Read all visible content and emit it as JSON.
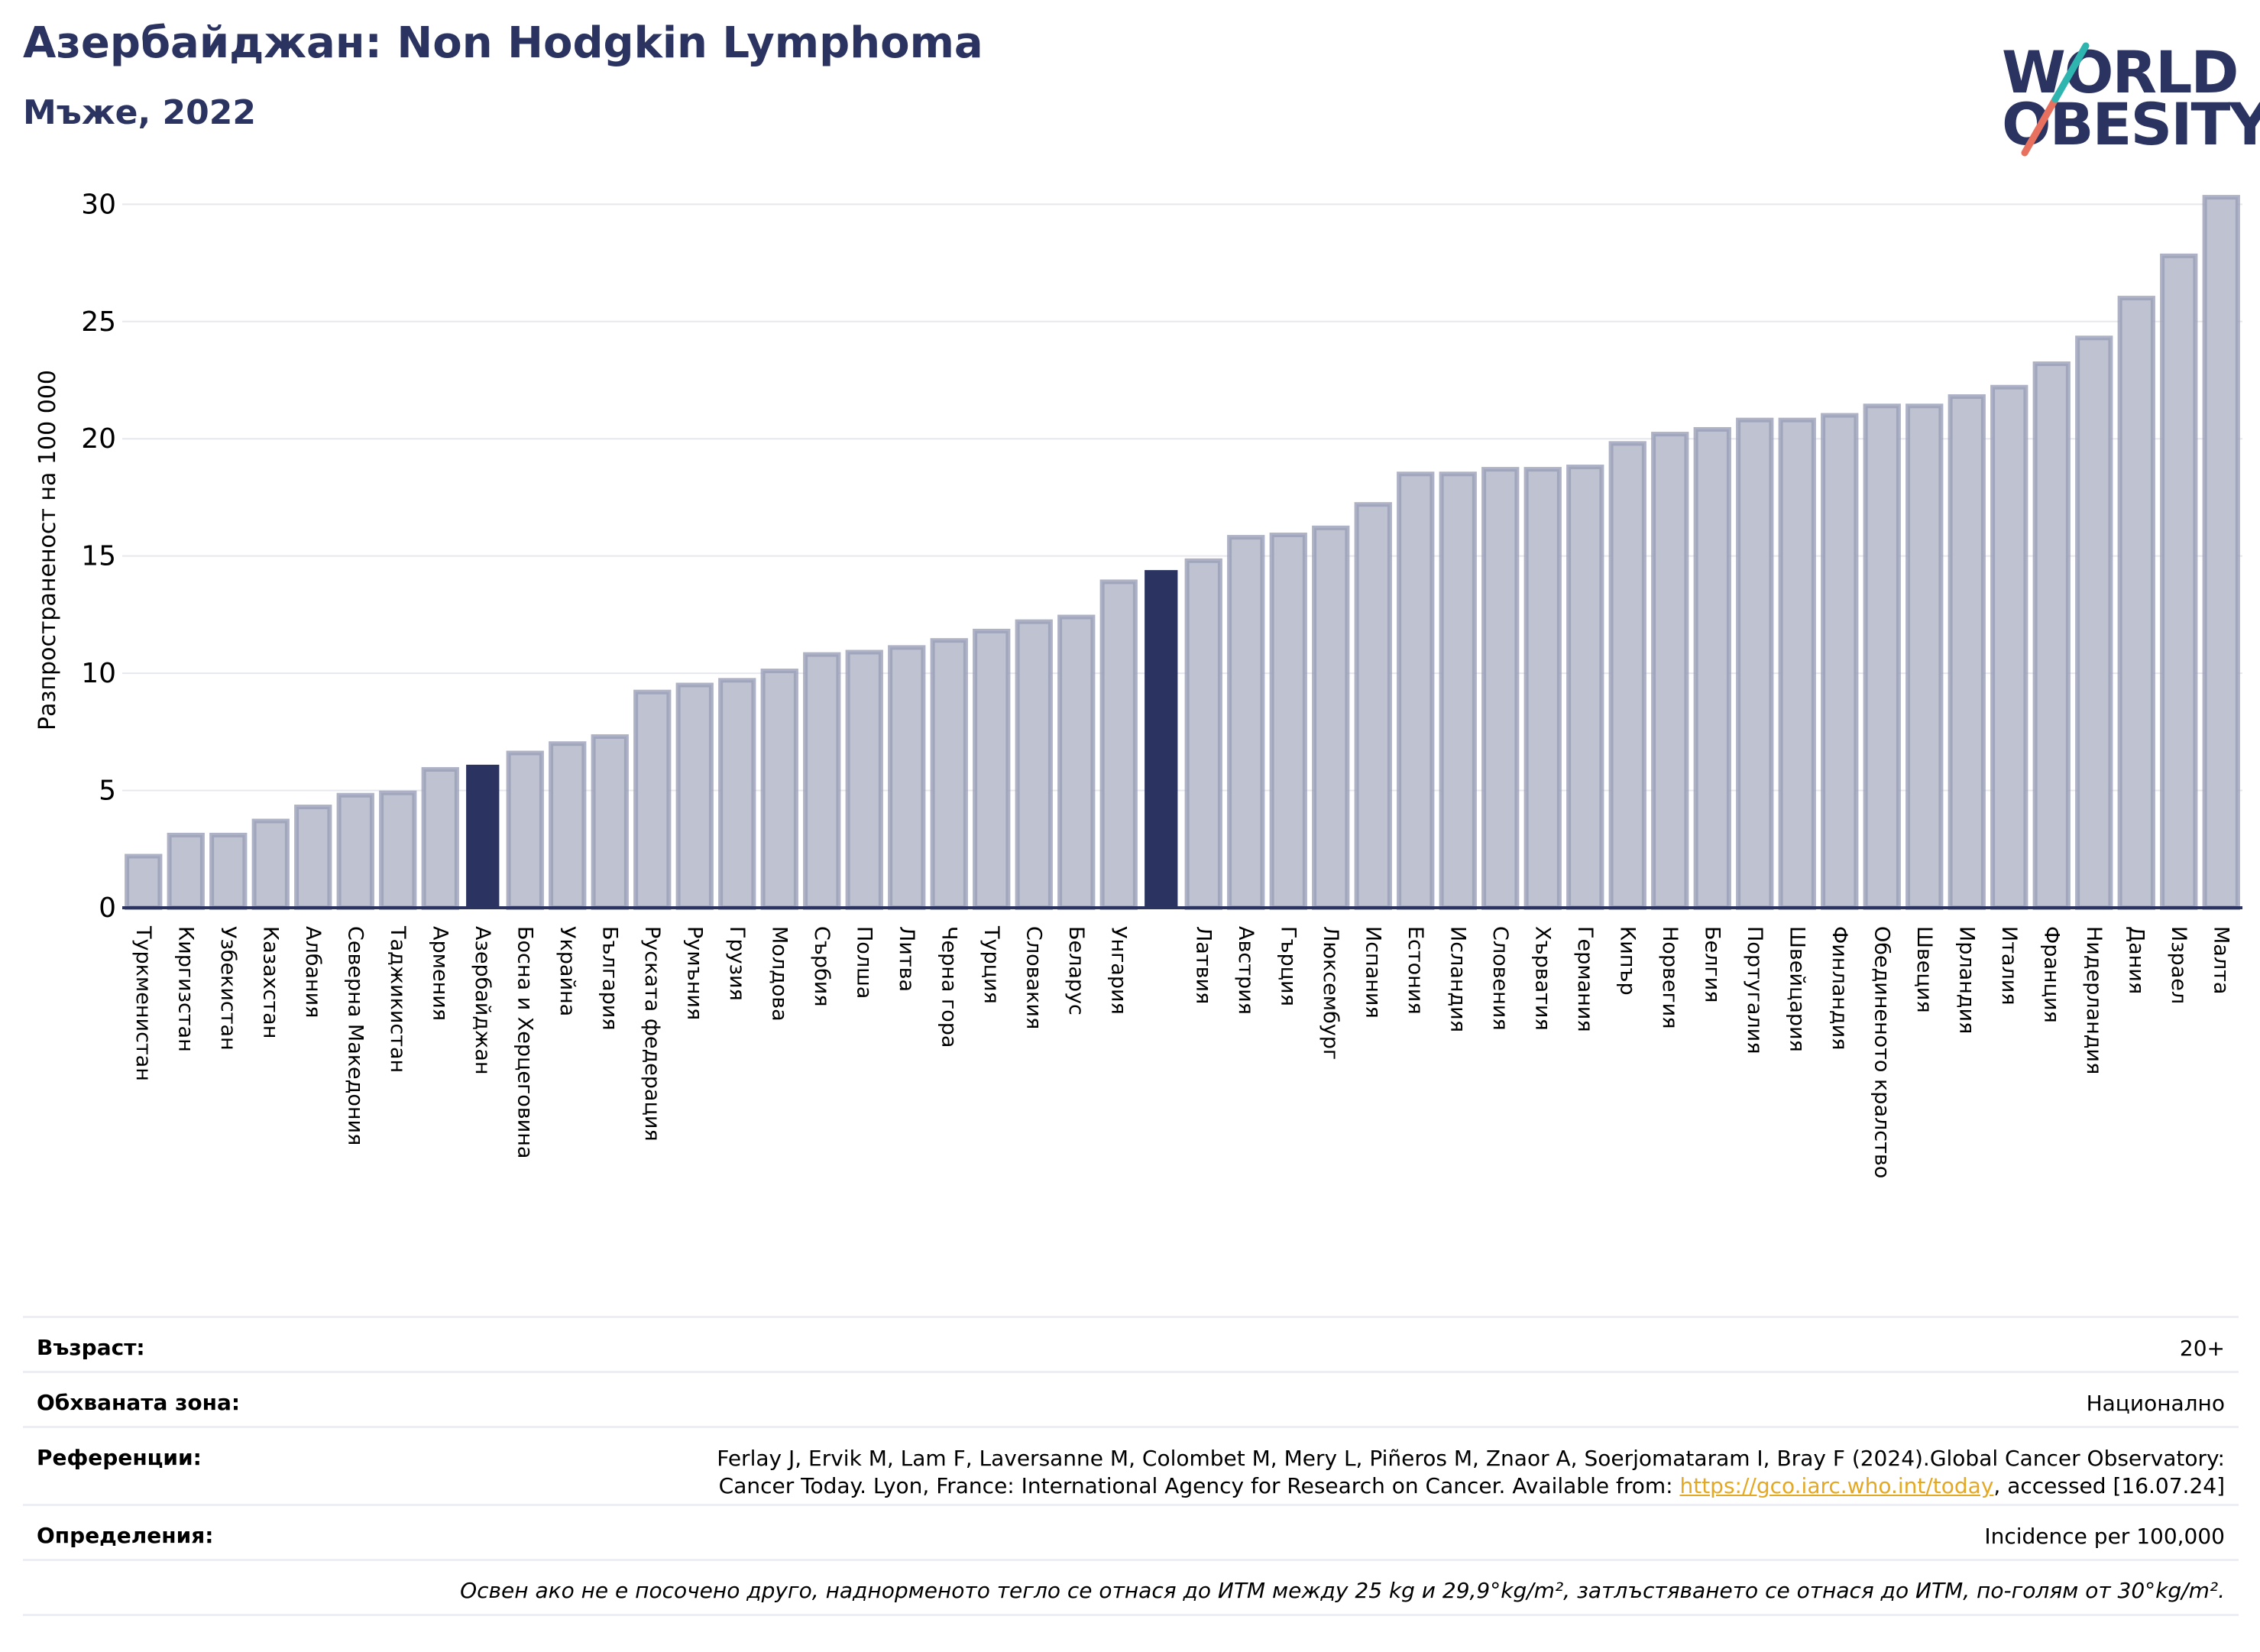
{
  "header": {
    "title": "Азербайджан: Non Hodgkin Lymphoma",
    "subtitle": "Мъже, 2022"
  },
  "logo": {
    "line1": "WORLD",
    "line2": "OBESITY"
  },
  "colors": {
    "highlight": "#2b3461",
    "bar": "#bfc3d1",
    "bar_stroke": "#9a9fb8",
    "axis": "#2b3461"
  },
  "chart_data": {
    "type": "bar",
    "ylabel": "Разпространеност  на 100 000",
    "ylim": [
      0,
      30.5
    ],
    "yticks": [
      0,
      5,
      10,
      15,
      20,
      25,
      30
    ],
    "grid": true,
    "categories": [
      "Туркменистан",
      "Киргизстан",
      "Узбекистан",
      "Казахстан",
      "Албания",
      "Северна Македония",
      "Таджикистан",
      "Армения",
      "Азербайджан",
      "Босна и Херцеговина",
      "Украйна",
      "България",
      "Руската федерация",
      "Румъния",
      "Грузия",
      "Молдова",
      "Сърбия",
      "Полша",
      "Литва",
      "Черна гора",
      "Турция",
      "Словакия",
      "Беларус",
      "Унгария",
      "",
      "Латвия",
      "Австрия",
      "Гърция",
      "Люксембург",
      "Испания",
      "Естония",
      "Исландия",
      "Словения",
      "Хърватия",
      "Германия",
      "Кипър",
      "Норвегия",
      "Белгия",
      "Португалия",
      "Швейцария",
      "Финландия",
      "Обединеното кралство",
      "Швеция",
      "Ирландия",
      "Италия",
      "Франция",
      "Нидерландия",
      "Дания",
      "Израел",
      "Малта"
    ],
    "values": [
      2.2,
      3.1,
      3.1,
      3.7,
      4.3,
      4.8,
      4.9,
      5.9,
      6.1,
      6.6,
      7.0,
      7.3,
      9.2,
      9.5,
      9.7,
      10.1,
      10.8,
      10.9,
      11.1,
      11.4,
      11.8,
      12.2,
      12.4,
      13.9,
      14.4,
      14.8,
      15.8,
      15.9,
      16.2,
      17.2,
      18.5,
      18.5,
      18.7,
      18.7,
      18.8,
      19.8,
      20.2,
      20.4,
      20.8,
      20.8,
      21.0,
      21.4,
      21.4,
      21.8,
      22.2,
      23.2,
      24.3,
      26.0,
      27.8,
      30.3
    ],
    "highlight": [
      "Азербайджан",
      ""
    ]
  },
  "info": {
    "age_label": "Възраст:",
    "age_value": "20+",
    "coverage_label": "Обхваната зона:",
    "coverage_value": "Национално",
    "refs_label": "Референции:",
    "refs_line1": "Ferlay J, Ervik M, Lam F, Laversanne M, Colombet M, Mery L, Piñeros M, Znaor A, Soerjomataram I, Bray F (2024).Global Cancer Observatory:",
    "refs_line2a": "Cancer Today. Lyon, France: International Agency for Research on Cancer. Available from: ",
    "refs_link": "https://gco.iarc.who.int/today",
    "refs_line2b": ", accessed [16.07.24]",
    "defs_label": "Определения:",
    "defs_value": "Incidence per 100,000",
    "note": "Освен ако не е посочено друго, наднорменото тегло се отнася до ИТМ между 25 kg и 29,9°kg/m², затлъстяването се отнася до ИТМ, по-голям от 30°kg/m²."
  }
}
